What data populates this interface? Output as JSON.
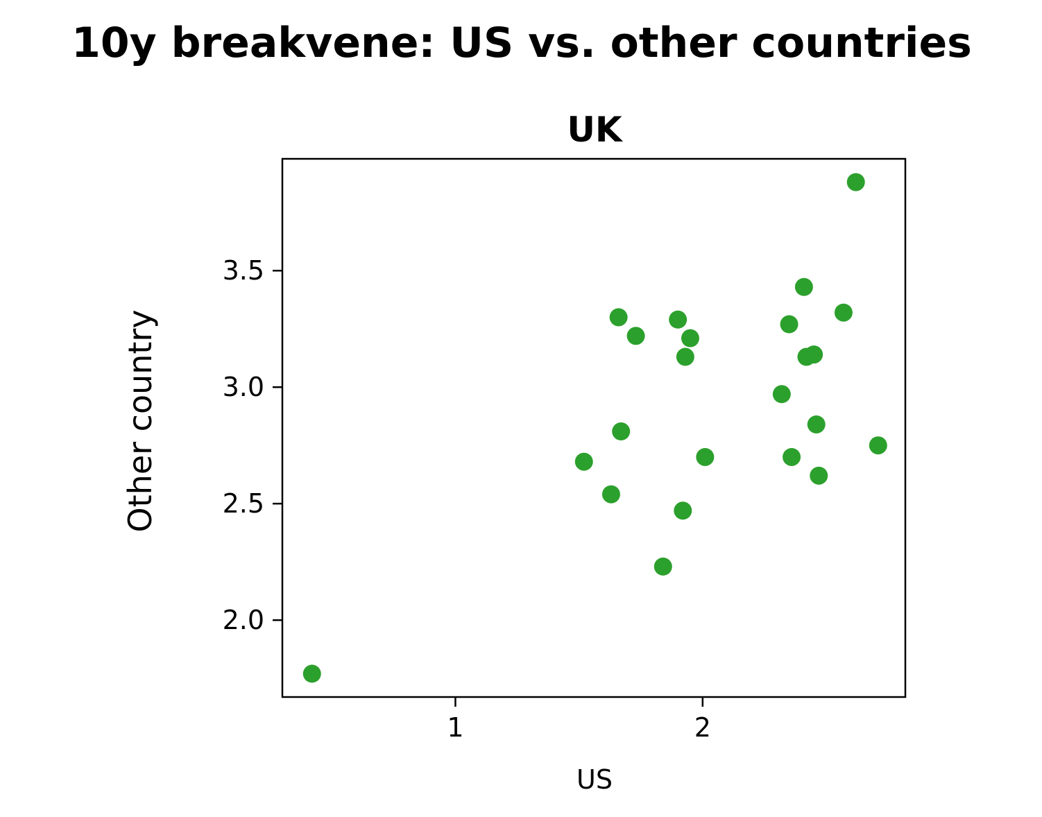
{
  "chart_data": {
    "type": "scatter",
    "title": "10y breakvene: US vs. other countries",
    "subtitle": "UK",
    "xlabel": "US",
    "ylabel": "Other country",
    "xlim": [
      0.3,
      2.82
    ],
    "ylim": [
      1.67,
      3.98
    ],
    "xticks": [
      1,
      2
    ],
    "xtick_labels": [
      "1",
      "2"
    ],
    "yticks": [
      2.0,
      2.5,
      3.0,
      3.5
    ],
    "ytick_labels": [
      "2.0",
      "2.5",
      "3.0",
      "3.5"
    ],
    "grid": false,
    "point_color": "#2ca02c",
    "x": [
      0.42,
      1.52,
      1.63,
      1.66,
      1.67,
      1.73,
      1.84,
      1.9,
      1.92,
      1.93,
      1.95,
      2.01,
      2.32,
      2.35,
      2.36,
      2.41,
      2.42,
      2.45,
      2.46,
      2.47,
      2.57,
      2.62,
      2.71
    ],
    "y": [
      1.77,
      2.68,
      2.54,
      3.3,
      2.81,
      3.22,
      2.23,
      3.29,
      2.47,
      3.13,
      3.21,
      2.7,
      2.97,
      3.27,
      2.7,
      3.43,
      3.13,
      3.14,
      2.84,
      2.62,
      3.32,
      3.88,
      2.75
    ]
  }
}
